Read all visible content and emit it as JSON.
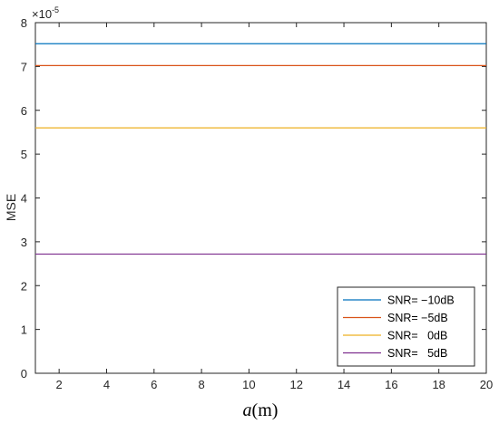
{
  "chart_data": {
    "type": "line",
    "title": "",
    "xlabel_var": "a",
    "xlabel_unit": "(m)",
    "ylabel": "MSE",
    "y_exponent_base": "×10",
    "y_exponent_power": "-5",
    "xlim": [
      1,
      20
    ],
    "ylim": [
      0,
      8
    ],
    "xticks": [
      2,
      4,
      6,
      8,
      10,
      12,
      14,
      16,
      18,
      20
    ],
    "yticks": [
      0,
      1,
      2,
      3,
      4,
      5,
      6,
      7,
      8
    ],
    "grid": false,
    "legend_position": "bottom-right",
    "x": [
      1,
      20
    ],
    "series": [
      {
        "name": "SNR= −10dB",
        "color": "#0072BD",
        "values": [
          7.52,
          7.52
        ]
      },
      {
        "name": "SNR= −5dB",
        "color": "#D95319",
        "values": [
          7.02,
          7.02
        ]
      },
      {
        "name": "SNR=   0dB",
        "color": "#EDB120",
        "values": [
          5.6,
          5.6
        ]
      },
      {
        "name": "SNR=   5dB",
        "color": "#7E2F8E",
        "values": [
          2.72,
          2.72
        ]
      }
    ]
  }
}
